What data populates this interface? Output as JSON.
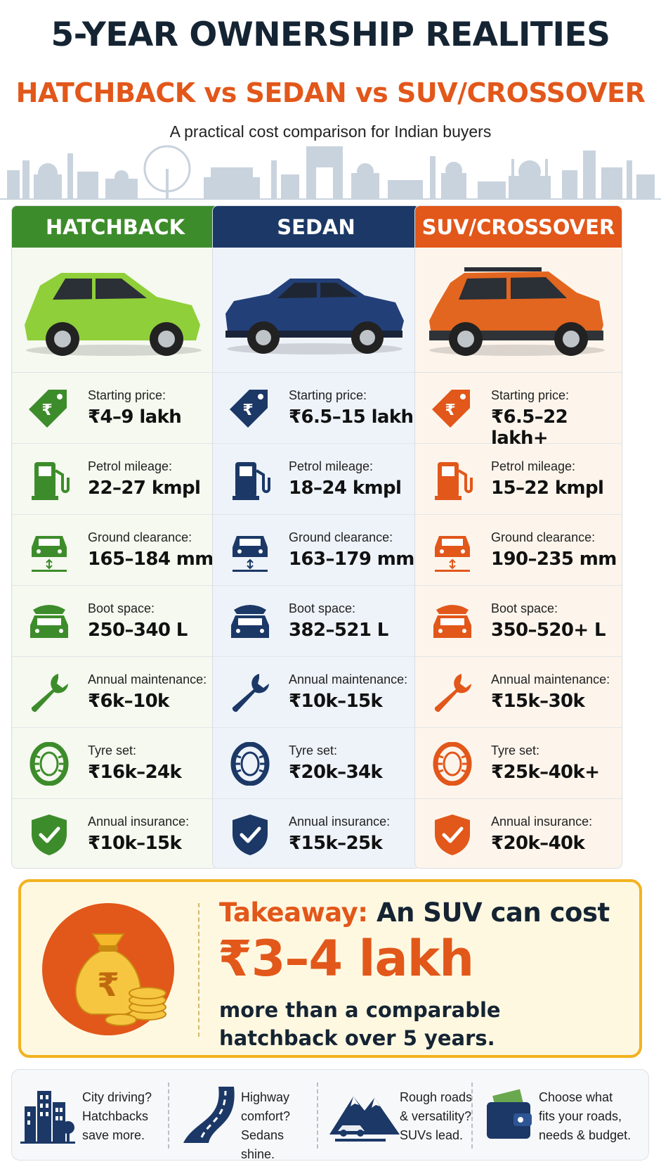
{
  "header": {
    "title": "5-YEAR OWNERSHIP REALITIES",
    "subtitle": "HATCHBACK vs SEDAN vs SUV/CROSSOVER",
    "tagline": "A practical cost comparison for Indian buyers"
  },
  "columns": [
    {
      "name": "HATCHBACK",
      "accent": "#3d8c2b",
      "bg": "#f5f9ef",
      "car_color": "#8fcf3a",
      "rows": [
        {
          "icon": "price-tag-icon",
          "label": "Starting price:",
          "value": "₹4–9 lakh"
        },
        {
          "icon": "fuel-pump-icon",
          "label": "Petrol mileage:",
          "value": "22–27 kmpl"
        },
        {
          "icon": "ground-clearance-icon",
          "label": "Ground clearance:",
          "value": "165–184 mm"
        },
        {
          "icon": "boot-space-icon",
          "label": "Boot space:",
          "value": "250–340 L"
        },
        {
          "icon": "wrench-icon",
          "label": "Annual maintenance:",
          "value": "₹6k–10k"
        },
        {
          "icon": "tyre-icon",
          "label": "Tyre set:",
          "value": "₹16k–24k"
        },
        {
          "icon": "shield-check-icon",
          "label": "Annual insurance:",
          "value": "₹10k–15k"
        }
      ]
    },
    {
      "name": "SEDAN",
      "accent": "#1b3866",
      "bg": "#eef3fa",
      "car_color": "#223f78",
      "rows": [
        {
          "icon": "price-tag-icon",
          "label": "Starting price:",
          "value": "₹6.5–15 lakh"
        },
        {
          "icon": "fuel-pump-icon",
          "label": "Petrol mileage:",
          "value": "18–24 kmpl"
        },
        {
          "icon": "ground-clearance-icon",
          "label": "Ground clearance:",
          "value": "163–179 mm"
        },
        {
          "icon": "boot-space-icon",
          "label": "Boot space:",
          "value": "382–521 L"
        },
        {
          "icon": "wrench-icon",
          "label": "Annual maintenance:",
          "value": "₹10k–15k"
        },
        {
          "icon": "tyre-icon",
          "label": "Tyre set:",
          "value": "₹20k–34k"
        },
        {
          "icon": "shield-check-icon",
          "label": "Annual insurance:",
          "value": "₹15k–25k"
        }
      ]
    },
    {
      "name": "SUV/CROSSOVER",
      "accent": "#e2571a",
      "bg": "#fdf5ec",
      "car_color": "#e2661f",
      "rows": [
        {
          "icon": "price-tag-icon",
          "label": "Starting price:",
          "value": "₹6.5–22 lakh+"
        },
        {
          "icon": "fuel-pump-icon",
          "label": "Petrol mileage:",
          "value": "15–22 kmpl"
        },
        {
          "icon": "ground-clearance-icon",
          "label": "Ground clearance:",
          "value": "190–235 mm"
        },
        {
          "icon": "boot-space-icon",
          "label": "Boot space:",
          "value": "350–520+ L"
        },
        {
          "icon": "wrench-icon",
          "label": "Annual maintenance:",
          "value": "₹15k–30k"
        },
        {
          "icon": "tyre-icon",
          "label": "Tyre set:",
          "value": "₹25k–40k+"
        },
        {
          "icon": "shield-check-icon",
          "label": "Annual insurance:",
          "value": "₹20k–40k"
        }
      ]
    }
  ],
  "takeaway": {
    "label": "Takeaway:",
    "lead": "An SUV can cost",
    "amount": "₹3–4 lakh",
    "rest": "more than a comparable hatchback over 5 years.",
    "icon": "money-bag-icon"
  },
  "tips": [
    {
      "icon": "city-buildings-icon",
      "text": [
        "City driving?",
        "Hatchbacks",
        "save more."
      ]
    },
    {
      "icon": "highway-road-icon",
      "text": [
        "Highway",
        "comfort?",
        "Sedans shine."
      ]
    },
    {
      "icon": "mountain-car-icon",
      "text": [
        "Rough roads",
        "& versatility?",
        "SUVs lead."
      ]
    },
    {
      "icon": "wallet-icon",
      "text": [
        "Choose what",
        "fits your roads,",
        "needs & budget."
      ]
    }
  ]
}
